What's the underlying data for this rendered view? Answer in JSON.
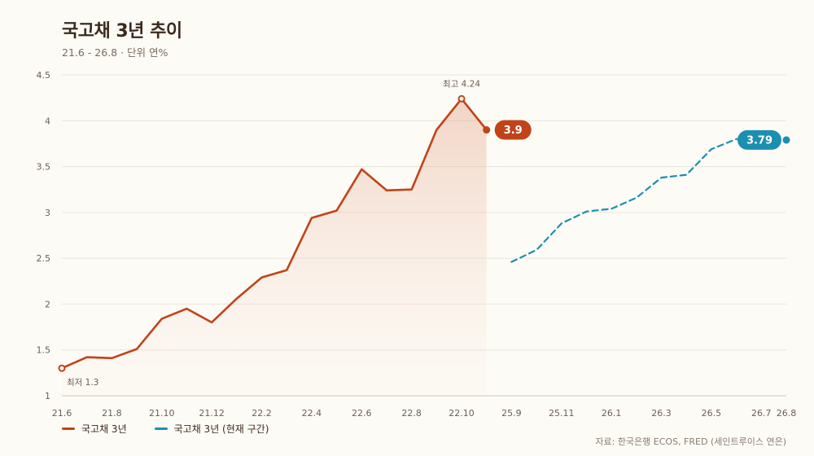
{
  "header": {
    "title": "국고채 3년 추이",
    "subtitle": "21.6 - 26.8 · 단위 연%"
  },
  "legend": {
    "items": [
      {
        "label": "국고채 3년",
        "color": "#c0441a"
      },
      {
        "label": "국고채 3년 (현재 구간)",
        "color": "#1b8fb0"
      }
    ]
  },
  "source": "자료: 한국은행 ECOS, FRED (세인트루이스 연은)",
  "chart_data": {
    "type": "line",
    "title": "국고채 3년 추이",
    "xlabel": "",
    "ylabel": "",
    "ylim": [
      1,
      4.5
    ],
    "yticks": [
      "1",
      "1.5",
      "2",
      "2.5",
      "3",
      "3.5",
      "4",
      "4.5"
    ],
    "grid": true,
    "legend_position": "bottom-left",
    "x": [
      "21.6",
      "21.7",
      "21.8",
      "21.9",
      "21.10",
      "21.11",
      "21.12",
      "22.1",
      "22.2",
      "22.3",
      "22.4",
      "22.5",
      "22.6",
      "22.7",
      "22.8",
      "22.9",
      "22.10",
      "22.11",
      "25.9",
      "25.10",
      "25.11",
      "25.12",
      "26.1",
      "26.2",
      "26.3",
      "26.4",
      "26.5",
      "26.6",
      "26.7",
      "26.8"
    ],
    "xticks": [
      "21.6",
      "21.8",
      "21.10",
      "21.12",
      "22.2",
      "22.4",
      "22.6",
      "22.8",
      "22.10",
      "25.9",
      "25.11",
      "26.1",
      "26.3",
      "26.5",
      "26.7",
      "26.8"
    ],
    "series": [
      {
        "name": "국고채 3년",
        "color": "#c0441a",
        "style": "solid",
        "x": [
          "21.6",
          "21.7",
          "21.8",
          "21.9",
          "21.10",
          "21.11",
          "21.12",
          "22.1",
          "22.2",
          "22.3",
          "22.4",
          "22.5",
          "22.6",
          "22.7",
          "22.8",
          "22.9",
          "22.10",
          "22.11"
        ],
        "values": [
          1.3,
          1.42,
          1.41,
          1.51,
          1.84,
          1.95,
          1.8,
          2.06,
          2.29,
          2.37,
          2.94,
          3.02,
          3.47,
          3.24,
          3.25,
          3.9,
          4.24,
          3.9
        ]
      },
      {
        "name": "국고채 3년 (현재 구간)",
        "color": "#1b8fb0",
        "style": "dashed",
        "x": [
          "25.9",
          "25.10",
          "25.11",
          "25.12",
          "26.1",
          "26.2",
          "26.3",
          "26.4",
          "26.5",
          "26.6",
          "26.7",
          "26.8"
        ],
        "values": [
          2.46,
          2.59,
          2.88,
          3.01,
          3.04,
          3.16,
          3.38,
          3.41,
          3.69,
          3.8,
          3.82,
          3.79
        ]
      }
    ],
    "annotations": [
      {
        "label": "최고 4.24",
        "x": "22.10",
        "value": 4.24
      },
      {
        "label": "최저 1.3",
        "x": "21.6",
        "value": 1.3
      }
    ],
    "end_labels": [
      {
        "label": "3.9",
        "series": 0,
        "color": "#c0441a"
      },
      {
        "label": "3.79",
        "series": 1,
        "color": "#1b8fb0"
      }
    ]
  }
}
